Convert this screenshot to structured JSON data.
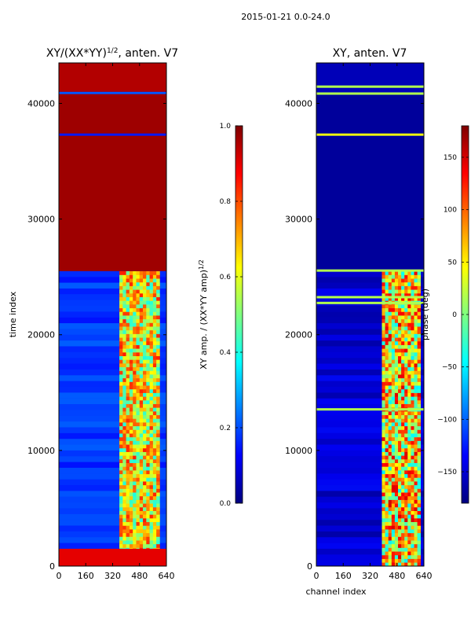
{
  "suptitle": "2015-01-21 0.0-24.0",
  "colormap": [
    "#00007f",
    "#0000ff",
    "#007fff",
    "#00ffff",
    "#7fff7f",
    "#ffff00",
    "#ff7f00",
    "#ff0000",
    "#7f0000"
  ],
  "chart_data": [
    {
      "type": "heatmap",
      "title_base": "XY/(XX*YY)",
      "title_exponent": "1/2",
      "title_suffix": ", anten. V7",
      "xlabel": "",
      "ylabel": "time index",
      "xlim": [
        0,
        640
      ],
      "ylim": [
        0,
        43500
      ],
      "x_ticks": [
        0,
        160,
        320,
        480,
        640
      ],
      "y_ticks": [
        0,
        10000,
        20000,
        30000,
        40000
      ],
      "colorbar": {
        "label_base": "XY amp. / (XX*YY amp)",
        "label_exponent": "1/2",
        "range": [
          0.0,
          1.0
        ],
        "ticks": [
          0.0,
          0.2,
          0.4,
          0.6,
          0.8,
          1.0
        ],
        "tick_labels": [
          "0.0",
          "0.2",
          "0.4",
          "0.6",
          "0.8",
          "1.0"
        ]
      },
      "background_level": 0.18,
      "regions": [
        {
          "t": [
            25500,
            40800
          ],
          "value": 0.97
        },
        {
          "t": [
            37200,
            37400
          ],
          "value": 0.15
        },
        {
          "t": [
            41000,
            43500
          ],
          "value": 0.95
        },
        {
          "t": [
            0,
            1500
          ],
          "value": 0.9
        }
      ],
      "active_band": {
        "x": [
          360,
          600
        ],
        "t": [
          0,
          25500
        ],
        "value_range": [
          0.4,
          0.85
        ]
      }
    },
    {
      "type": "heatmap",
      "title": "XY, anten. V7",
      "xlabel": "channel index",
      "ylabel": "",
      "xlim": [
        0,
        640
      ],
      "ylim": [
        0,
        43500
      ],
      "x_ticks": [
        0,
        160,
        320,
        480,
        640
      ],
      "y_ticks": [
        0,
        10000,
        20000,
        30000,
        40000
      ],
      "colorbar": {
        "label": "phase (deg)",
        "range": [
          -180,
          180
        ],
        "ticks": [
          -150,
          -100,
          -50,
          0,
          50,
          100,
          150
        ],
        "tick_labels": [
          "−150",
          "−100",
          "−50",
          "0",
          "50",
          "100",
          "150"
        ]
      },
      "background_level": -150,
      "regions": [
        {
          "t": [
            25500,
            40800
          ],
          "value": -170
        },
        {
          "t": [
            37200,
            37400
          ],
          "value": 40
        },
        {
          "t": [
            41000,
            43500
          ],
          "value": -160
        }
      ],
      "stripe_times": [
        13400,
        23100,
        22600,
        25400,
        41300,
        40700
      ],
      "active_band": {
        "x": [
          390,
          620
        ],
        "t": [
          0,
          25500
        ],
        "value_range": [
          -50,
          150
        ]
      }
    }
  ]
}
